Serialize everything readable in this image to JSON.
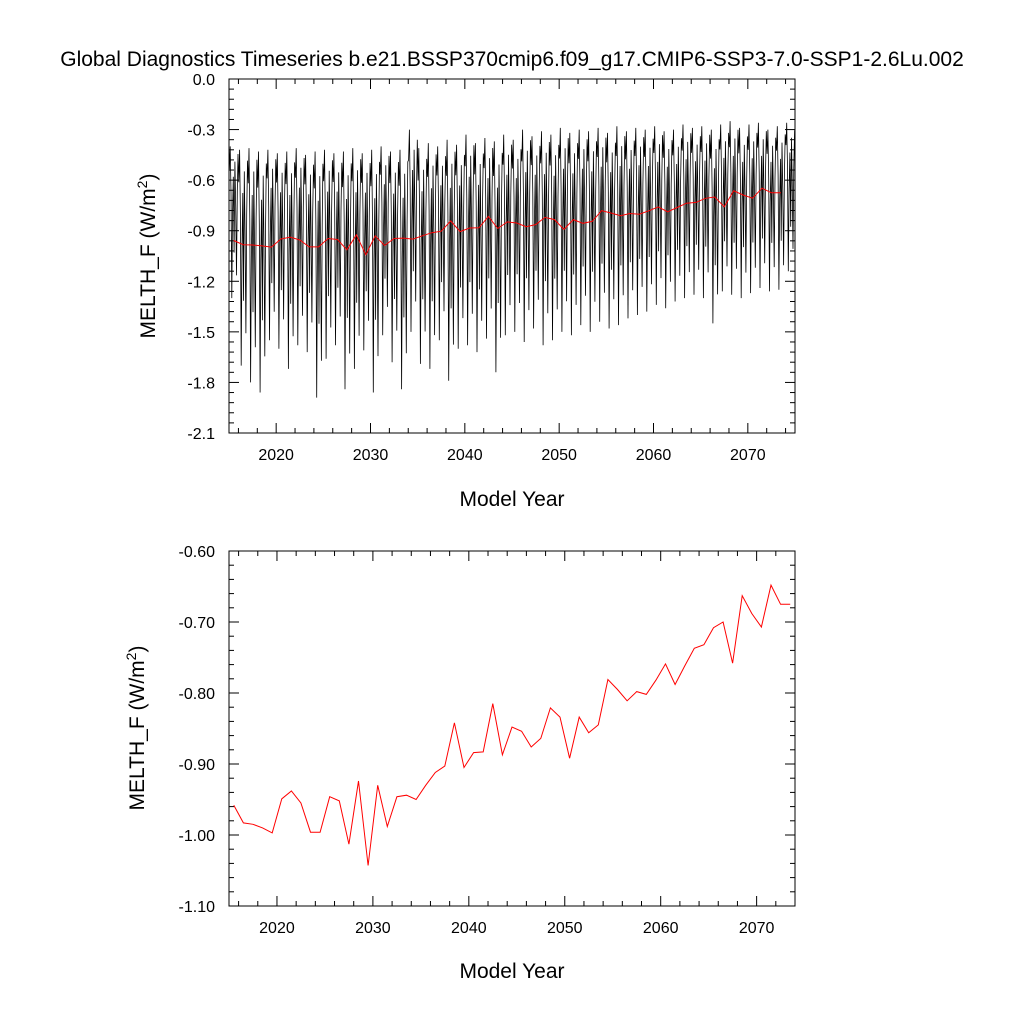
{
  "title": "Global Diagnostics Timeseries b.e21.BSSP370cmip6.f09_g17.CMIP6-SSP3-7.0-SSP1-2.6Lu.002",
  "colors": {
    "monthly": "#000000",
    "annual": "#ff0000"
  },
  "chart_data": [
    {
      "type": "line",
      "xlabel": "Model Year",
      "ylabel": "MELTH_F (W/m",
      "ylabel_sup": "2",
      "ylabel_close": ")",
      "xlim": [
        2015,
        2075
      ],
      "ylim": [
        -2.1,
        0.0
      ],
      "xticks": [
        2020,
        2030,
        2040,
        2050,
        2060,
        2070
      ],
      "xtick_labels": [
        "2020",
        "2030",
        "2040",
        "2050",
        "2060",
        "2070"
      ],
      "yticks": [
        0.0,
        -0.3,
        -0.6,
        -0.9,
        -1.2,
        -1.5,
        -1.8,
        -2.1
      ],
      "ytick_labels": [
        "0.0",
        "-0.3",
        "-0.6",
        "-0.9",
        "-1.2",
        "-1.5",
        "-1.8",
        "-2.1"
      ],
      "series": [
        {
          "kind": "monthly",
          "color": "#000000",
          "start_year": 2015,
          "months_per_year": 12,
          "annual_max": [
            -0.4,
            -0.42,
            -0.41,
            -0.43,
            -0.42,
            -0.44,
            -0.43,
            -0.41,
            -0.45,
            -0.43,
            -0.42,
            -0.44,
            -0.43,
            -0.41,
            -0.44,
            -0.42,
            -0.4,
            -0.43,
            -0.42,
            -0.3,
            -0.41,
            -0.38,
            -0.4,
            -0.36,
            -0.39,
            -0.33,
            -0.38,
            -0.35,
            -0.37,
            -0.33,
            -0.36,
            -0.3,
            -0.34,
            -0.31,
            -0.33,
            -0.29,
            -0.32,
            -0.3,
            -0.31,
            -0.29,
            -0.32,
            -0.28,
            -0.31,
            -0.29,
            -0.3,
            -0.28,
            -0.31,
            -0.3,
            -0.27,
            -0.29,
            -0.28,
            -0.3,
            -0.27,
            -0.25,
            -0.29,
            -0.27,
            -0.26,
            -0.3,
            -0.28,
            -0.26
          ],
          "annual_min": [
            -1.3,
            -1.7,
            -1.8,
            -1.86,
            -1.55,
            -1.6,
            -1.72,
            -1.58,
            -1.62,
            -1.89,
            -1.66,
            -1.58,
            -1.84,
            -1.72,
            -1.61,
            -1.86,
            -1.52,
            -1.68,
            -1.84,
            -1.5,
            -1.69,
            -1.72,
            -1.55,
            -1.79,
            -1.6,
            -1.58,
            -1.62,
            -1.54,
            -1.74,
            -1.52,
            -1.5,
            -1.56,
            -1.48,
            -1.58,
            -1.55,
            -1.5,
            -1.52,
            -1.46,
            -1.5,
            -1.44,
            -1.48,
            -1.46,
            -1.42,
            -1.4,
            -1.38,
            -1.34,
            -1.36,
            -1.32,
            -1.3,
            -1.28,
            -1.3,
            -1.45,
            -1.26,
            -1.28,
            -1.3,
            -1.27,
            -1.24,
            -1.26,
            -1.25,
            -1.14
          ]
        },
        {
          "kind": "annual",
          "color": "#ff0000",
          "x": [
            2015.5,
            2016.5,
            2017.5,
            2018.5,
            2019.5,
            2020.5,
            2021.5,
            2022.5,
            2023.5,
            2024.5,
            2025.5,
            2026.5,
            2027.5,
            2028.5,
            2029.5,
            2030.5,
            2031.5,
            2032.5,
            2033.5,
            2034.5,
            2035.5,
            2036.5,
            2037.5,
            2038.5,
            2039.5,
            2040.5,
            2041.5,
            2042.5,
            2043.5,
            2044.5,
            2045.5,
            2046.5,
            2047.5,
            2048.5,
            2049.5,
            2050.5,
            2051.5,
            2052.5,
            2053.5,
            2054.5,
            2055.5,
            2056.5,
            2057.5,
            2058.5,
            2059.5,
            2060.5,
            2061.5,
            2062.5,
            2063.5,
            2064.5,
            2065.5,
            2066.5,
            2067.5,
            2068.5,
            2069.5,
            2070.5,
            2071.5,
            2072.5,
            2073.5
          ],
          "y": [
            -0.958,
            -0.983,
            -0.985,
            -0.99,
            -0.997,
            -0.949,
            -0.938,
            -0.955,
            -0.996,
            -0.996,
            -0.946,
            -0.952,
            -1.013,
            -0.924,
            -1.043,
            -0.93,
            -0.988,
            -0.946,
            -0.944,
            -0.95,
            -0.93,
            -0.912,
            -0.903,
            -0.842,
            -0.905,
            -0.884,
            -0.883,
            -0.815,
            -0.887,
            -0.848,
            -0.854,
            -0.876,
            -0.864,
            -0.821,
            -0.834,
            -0.892,
            -0.834,
            -0.856,
            -0.845,
            -0.781,
            -0.795,
            -0.811,
            -0.798,
            -0.802,
            -0.782,
            -0.759,
            -0.788,
            -0.762,
            -0.737,
            -0.732,
            -0.708,
            -0.7,
            -0.758,
            -0.663,
            -0.688,
            -0.707,
            -0.648,
            -0.675,
            -0.675
          ]
        }
      ]
    },
    {
      "type": "line",
      "xlabel": "Model Year",
      "ylabel": "MELTH_F (W/m",
      "ylabel_sup": "2",
      "ylabel_close": ")",
      "xlim": [
        2015,
        2074
      ],
      "ylim": [
        -1.1,
        -0.6
      ],
      "xticks": [
        2020,
        2030,
        2040,
        2050,
        2060,
        2070
      ],
      "xtick_labels": [
        "2020",
        "2030",
        "2040",
        "2050",
        "2060",
        "2070"
      ],
      "yticks": [
        -0.6,
        -0.7,
        -0.8,
        -0.9,
        -1.0,
        -1.1
      ],
      "ytick_labels": [
        "-0.60",
        "-0.70",
        "-0.80",
        "-0.90",
        "-1.00",
        "-1.10"
      ],
      "series": [
        {
          "kind": "annual",
          "color": "#ff0000",
          "x": [
            2015.5,
            2016.5,
            2017.5,
            2018.5,
            2019.5,
            2020.5,
            2021.5,
            2022.5,
            2023.5,
            2024.5,
            2025.5,
            2026.5,
            2027.5,
            2028.5,
            2029.5,
            2030.5,
            2031.5,
            2032.5,
            2033.5,
            2034.5,
            2035.5,
            2036.5,
            2037.5,
            2038.5,
            2039.5,
            2040.5,
            2041.5,
            2042.5,
            2043.5,
            2044.5,
            2045.5,
            2046.5,
            2047.5,
            2048.5,
            2049.5,
            2050.5,
            2051.5,
            2052.5,
            2053.5,
            2054.5,
            2055.5,
            2056.5,
            2057.5,
            2058.5,
            2059.5,
            2060.5,
            2061.5,
            2062.5,
            2063.5,
            2064.5,
            2065.5,
            2066.5,
            2067.5,
            2068.5,
            2069.5,
            2070.5,
            2071.5,
            2072.5,
            2073.5
          ],
          "y": [
            -0.958,
            -0.983,
            -0.985,
            -0.99,
            -0.997,
            -0.949,
            -0.938,
            -0.955,
            -0.996,
            -0.996,
            -0.946,
            -0.952,
            -1.013,
            -0.924,
            -1.043,
            -0.93,
            -0.988,
            -0.946,
            -0.944,
            -0.95,
            -0.93,
            -0.912,
            -0.903,
            -0.842,
            -0.905,
            -0.884,
            -0.883,
            -0.815,
            -0.887,
            -0.848,
            -0.854,
            -0.876,
            -0.864,
            -0.821,
            -0.834,
            -0.892,
            -0.834,
            -0.856,
            -0.845,
            -0.781,
            -0.795,
            -0.811,
            -0.798,
            -0.802,
            -0.782,
            -0.759,
            -0.788,
            -0.762,
            -0.737,
            -0.732,
            -0.708,
            -0.7,
            -0.758,
            -0.663,
            -0.688,
            -0.707,
            -0.648,
            -0.675,
            -0.675
          ]
        }
      ]
    }
  ]
}
